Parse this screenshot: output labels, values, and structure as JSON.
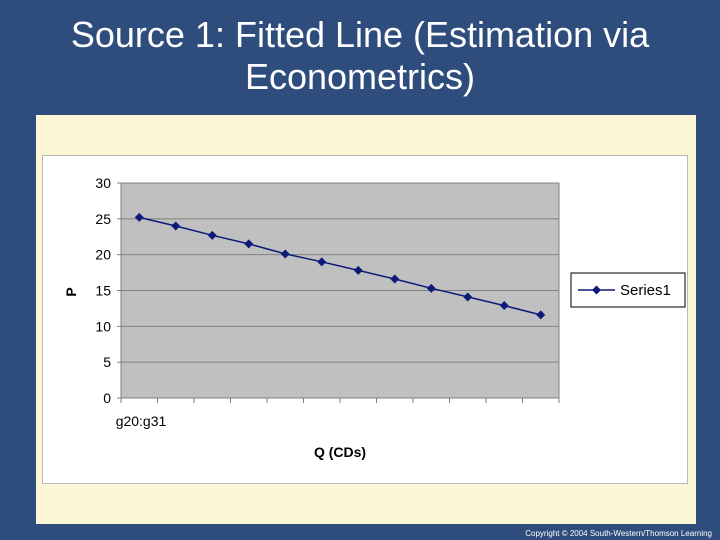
{
  "slide": {
    "title": "Source 1: Fitted Line (Estimation via Econometrics)",
    "copyright": "Copyright © 2004 South-Western/Thomson Learning"
  },
  "chart_data": {
    "type": "line",
    "title": "",
    "xlabel": "Q (CDs)",
    "ylabel": "P",
    "x_tick_label": "g20:g31",
    "ylim": [
      0,
      30
    ],
    "yticks": [
      0,
      5,
      10,
      15,
      20,
      25,
      30
    ],
    "grid": true,
    "legend": "right",
    "colors": {
      "series": "#0d1a7a",
      "plot_bg": "#c0c0c0"
    },
    "series": [
      {
        "name": "Series1",
        "values": [
          25.2,
          24.0,
          22.7,
          21.5,
          20.1,
          19.0,
          17.8,
          16.6,
          15.3,
          14.1,
          12.9,
          11.6
        ]
      }
    ]
  }
}
